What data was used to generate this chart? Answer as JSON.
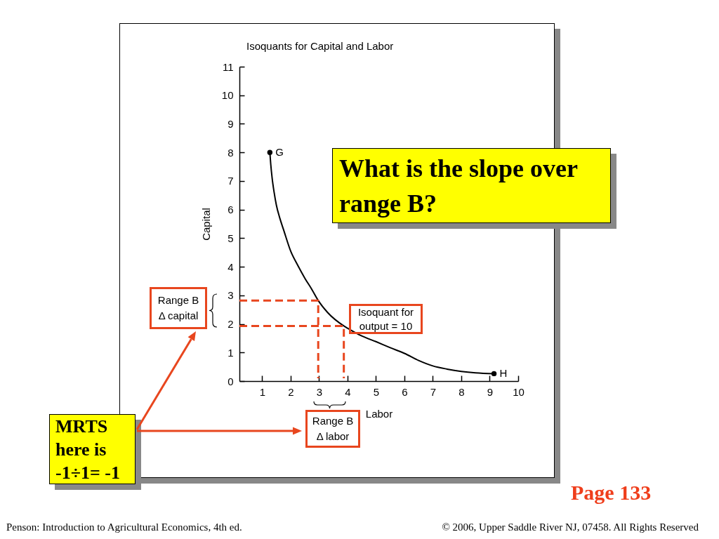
{
  "chart_data": {
    "type": "line",
    "title": "Isoquants for Capital and Labor",
    "xlabel": "Labor",
    "ylabel": "Capital",
    "xlim": [
      0.2,
      10
    ],
    "xticks": [
      1,
      2,
      3,
      4,
      5,
      6,
      7,
      8,
      9,
      10
    ],
    "ylim": [
      0,
      11
    ],
    "yticks": [
      0,
      1,
      2,
      3,
      4,
      5,
      6,
      7,
      8,
      9,
      10,
      11
    ],
    "series": [
      {
        "color": "#000000",
        "x": [
          1.27,
          1.3,
          1.35,
          1.42,
          1.5,
          1.62,
          1.75,
          2,
          2.25,
          2.5,
          2.75,
          2.97,
          3.3,
          3.87,
          4,
          4.5,
          5,
          5.5,
          6,
          6.5,
          7,
          7.5,
          8,
          8.5,
          9.15
        ],
        "values": [
          8,
          7.6,
          7.1,
          6.6,
          6.15,
          5.7,
          5.3,
          4.55,
          4.05,
          3.6,
          3.2,
          2.82,
          2.4,
          1.93,
          1.85,
          1.58,
          1.38,
          1.17,
          0.97,
          0.72,
          0.53,
          0.42,
          0.34,
          0.29,
          0.26
        ]
      },
      {
        "type": "scatter",
        "color": "#000000",
        "marker": "circle",
        "x": [
          1.27,
          9.15
        ],
        "values": [
          8,
          0.26
        ]
      },
      {
        "color": "#e8461e",
        "line_style": "dashed",
        "x": [
          0.2,
          2.97,
          2.97
        ],
        "values": [
          2.82,
          2.82,
          0.1
        ]
      },
      {
        "color": "#e8461e",
        "line_style": "dashed",
        "x": [
          0.2,
          3.87,
          3.87
        ],
        "values": [
          1.93,
          1.93,
          0.1
        ]
      }
    ],
    "annotations": [
      {
        "text": "G",
        "x": 1.27,
        "y": 8
      },
      {
        "text": "H",
        "x": 9.15,
        "y": 0.26
      },
      "Isoquant for\noutput = 10",
      "Range B\nΔ capital",
      "Range B\nΔ labor",
      "What is the slope over range B?",
      "MRTS here is -1÷1= -1",
      "Page 133",
      "Penson: Introduction to Agricultural Economics, 4th ed.",
      "© 2006, Upper Saddle River NJ, 07458. All Rights Reserved"
    ]
  }
}
